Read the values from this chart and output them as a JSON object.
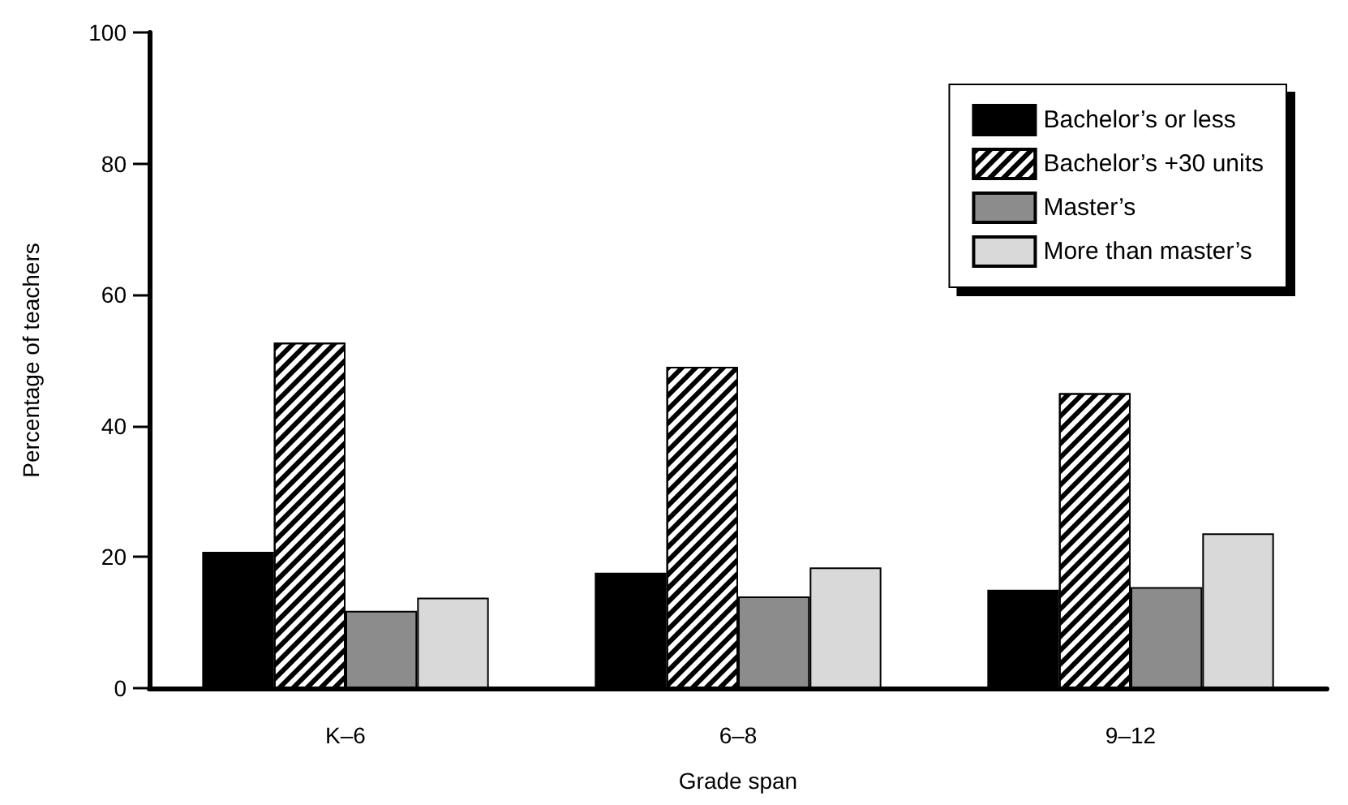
{
  "chart_data": {
    "type": "bar",
    "xlabel": "Grade span",
    "ylabel": "Percentage of teachers",
    "categories": [
      "K–6",
      "6–8",
      "9–12"
    ],
    "series": [
      {
        "name": "Bachelor’s or less",
        "color": "#000000",
        "values": [
          20.8,
          17.6,
          15.0
        ]
      },
      {
        "name": "Bachelor’s +30 units",
        "color": "#000000",
        "values": [
          52.7,
          49.0,
          45.0
        ]
      },
      {
        "name": "Master’s",
        "color": "#8c8c8c",
        "values": [
          11.8,
          14.0,
          15.4
        ]
      },
      {
        "name": "More than master’s",
        "color": "#d9d9d9",
        "values": [
          13.8,
          18.4,
          23.6
        ]
      }
    ],
    "ylim": [
      0,
      100
    ],
    "yticks": [
      0,
      20,
      40,
      60,
      80,
      100
    ],
    "grid": false,
    "legend": "top right"
  }
}
